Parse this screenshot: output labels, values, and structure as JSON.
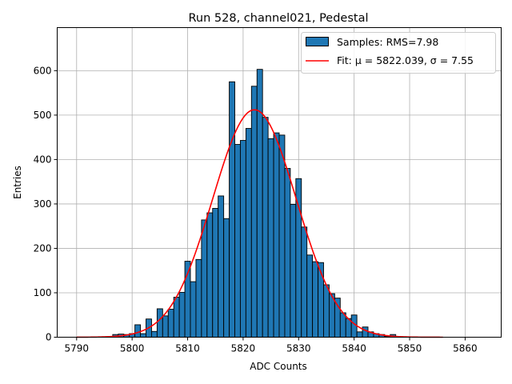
{
  "chart_data": {
    "type": "bar",
    "title": "Run 528, channel021, Pedestal",
    "xlabel": "ADC Counts",
    "ylabel": "Entries",
    "xlim": [
      5786.5,
      5866.5
    ],
    "ylim": [
      0,
      697
    ],
    "grid": true,
    "legend_position": "top-right",
    "x_ticks": [
      5790,
      5800,
      5810,
      5820,
      5830,
      5840,
      5850,
      5860
    ],
    "y_ticks": [
      0,
      100,
      200,
      300,
      400,
      500,
      600
    ],
    "colors": {
      "bars": "#1f77b4",
      "bar_edge": "#000000",
      "fit": "#ff0000",
      "grid": "#b0b0b0"
    },
    "series": [
      {
        "name": "Samples: RMS=7.98",
        "kind": "histogram",
        "bin_width": 1,
        "bin_centers": [
          5797,
          5798,
          5799,
          5800,
          5801,
          5802,
          5803,
          5804,
          5805,
          5806,
          5807,
          5808,
          5809,
          5810,
          5811,
          5812,
          5813,
          5814,
          5815,
          5816,
          5817,
          5818,
          5819,
          5820,
          5821,
          5822,
          5823,
          5824,
          5825,
          5826,
          5827,
          5828,
          5829,
          5830,
          5831,
          5832,
          5833,
          5834,
          5835,
          5836,
          5837,
          5838,
          5839,
          5840,
          5841,
          5842,
          5843,
          5844,
          5845,
          5846,
          5847,
          5848,
          5849
        ],
        "counts": [
          6,
          7,
          6,
          8,
          28,
          8,
          41,
          13,
          64,
          48,
          63,
          90,
          101,
          171,
          125,
          175,
          264,
          280,
          290,
          318,
          267,
          575,
          434,
          443,
          470,
          565,
          603,
          495,
          447,
          460,
          455,
          380,
          299,
          357,
          248,
          185,
          170,
          168,
          118,
          98,
          88,
          55,
          42,
          50,
          12,
          23,
          12,
          8,
          6,
          2,
          6,
          1,
          1
        ]
      },
      {
        "name": "Fit: μ = 5822.039, σ = 7.55",
        "kind": "gaussian_fit",
        "mu": 5822.039,
        "sigma": 7.55,
        "amplitude": 512,
        "x_range": [
          5790,
          5856
        ]
      }
    ]
  }
}
